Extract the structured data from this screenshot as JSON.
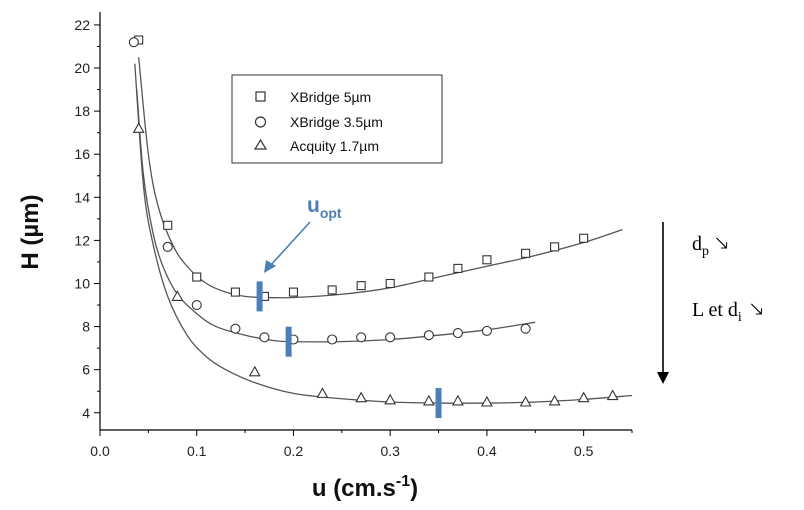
{
  "chart_data": {
    "type": "scatter",
    "xlabel": {
      "base": "u (cm.s",
      "sup": "-1",
      "end": ")"
    },
    "ylabel": "H (µm)",
    "xlim": [
      0.0,
      0.55
    ],
    "ylim": [
      3.2,
      22.6
    ],
    "xticks": [
      "0.0",
      "0.1",
      "0.2",
      "0.3",
      "0.4",
      "0.5"
    ],
    "yticks": [
      "4",
      "6",
      "8",
      "10",
      "12",
      "14",
      "16",
      "18",
      "20",
      "22"
    ],
    "legend_position": "top-center",
    "series": [
      {
        "name": "XBridge 5µm",
        "marker": "square",
        "x": [
          0.04,
          0.07,
          0.1,
          0.14,
          0.17,
          0.2,
          0.24,
          0.27,
          0.3,
          0.34,
          0.37,
          0.4,
          0.44,
          0.47,
          0.5
        ],
        "y": [
          21.3,
          12.7,
          10.3,
          9.6,
          9.4,
          9.6,
          9.7,
          9.9,
          10.0,
          10.3,
          10.7,
          11.1,
          11.4,
          11.7,
          12.1
        ],
        "fit_x": [
          0.04,
          0.05,
          0.06,
          0.075,
          0.09,
          0.11,
          0.13,
          0.15,
          0.17,
          0.2,
          0.25,
          0.3,
          0.35,
          0.4,
          0.45,
          0.5,
          0.54
        ],
        "fit_y": [
          20.5,
          16.0,
          13.6,
          11.8,
          10.8,
          10.0,
          9.6,
          9.4,
          9.35,
          9.35,
          9.5,
          9.8,
          10.3,
          10.8,
          11.3,
          11.9,
          12.5
        ],
        "u_opt": 0.165,
        "u_opt_H": 9.4
      },
      {
        "name": "XBridge 3.5µm",
        "marker": "circle",
        "x": [
          0.035,
          0.07,
          0.1,
          0.14,
          0.17,
          0.2,
          0.24,
          0.27,
          0.3,
          0.34,
          0.37,
          0.4,
          0.44
        ],
        "y": [
          21.2,
          11.7,
          9.0,
          7.9,
          7.5,
          7.4,
          7.4,
          7.5,
          7.5,
          7.6,
          7.7,
          7.8,
          7.9
        ],
        "fit_x": [
          0.038,
          0.045,
          0.055,
          0.065,
          0.08,
          0.1,
          0.12,
          0.15,
          0.18,
          0.2,
          0.25,
          0.3,
          0.35,
          0.4,
          0.45
        ],
        "fit_y": [
          19.0,
          15.0,
          12.3,
          10.8,
          9.5,
          8.6,
          8.0,
          7.6,
          7.35,
          7.3,
          7.3,
          7.4,
          7.6,
          7.85,
          8.2
        ],
        "u_opt": 0.195,
        "u_opt_H": 7.3
      },
      {
        "name": "Acquity 1.7µm",
        "marker": "triangle",
        "x": [
          0.04,
          0.08,
          0.16,
          0.23,
          0.27,
          0.3,
          0.34,
          0.37,
          0.4,
          0.44,
          0.47,
          0.5,
          0.53
        ],
        "y": [
          17.2,
          9.4,
          5.9,
          4.9,
          4.7,
          4.6,
          4.55,
          4.55,
          4.5,
          4.5,
          4.55,
          4.7,
          4.8
        ],
        "fit_x": [
          0.036,
          0.045,
          0.055,
          0.07,
          0.09,
          0.11,
          0.13,
          0.16,
          0.2,
          0.25,
          0.3,
          0.35,
          0.4,
          0.45,
          0.5,
          0.55
        ],
        "fit_y": [
          20.2,
          14.5,
          11.8,
          9.4,
          7.6,
          6.6,
          6.0,
          5.4,
          4.9,
          4.65,
          4.5,
          4.45,
          4.45,
          4.5,
          4.62,
          4.8
        ],
        "u_opt": 0.35,
        "u_opt_H": 4.45
      }
    ]
  },
  "annotations": {
    "uopt_main": "u",
    "uopt_sub": "opt",
    "dp_main": "d",
    "dp_sub": "p",
    "dp_arrow": "🡖",
    "l_label": "L et d",
    "l_sub": "i",
    "l_arrow": "🡖"
  },
  "colors": {
    "marker_bar": "#4a7fb8",
    "curve": "#555555",
    "axis": "#000000"
  }
}
